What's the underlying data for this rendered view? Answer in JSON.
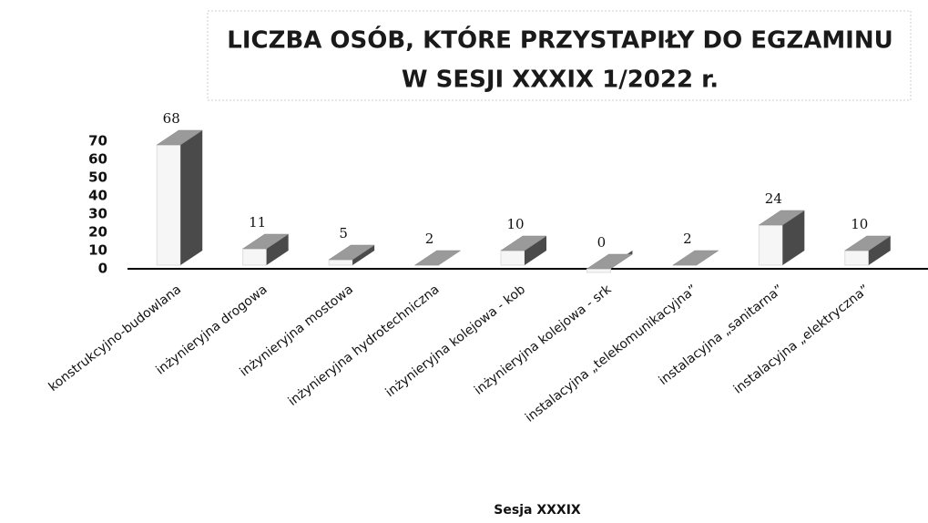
{
  "chart_data": {
    "type": "bar3d",
    "title": [
      "LICZBA OSÓB, KTÓRE PRZYSTAPIŁY DO EGZAMINU",
      "W SESJI XXXIX 1/2022 r."
    ],
    "x_label": "Sesja XXXIX",
    "categories": [
      "konstrukcyjno-budowlana",
      "inżynieryjna drogowa",
      "inżynieryjna mostowa",
      "inżynieryjna hydrotechniczna",
      "inżynieryjna kolejowa - kob",
      "inżynieryjna kolejowa - srk",
      "instalacyjna „telekomunikacyjna”",
      "instalacyjna „sanitarna”",
      "instalacyjna „elektryczna”"
    ],
    "values": [
      68,
      11,
      5,
      2,
      10,
      0,
      2,
      24,
      10
    ],
    "colors": {
      "front": "#f6f6f6",
      "side": "#4a4a4a",
      "top": "#9a9a9a"
    },
    "ylim": [
      0,
      70
    ],
    "yticks": [
      0,
      10,
      20,
      30,
      40,
      50,
      60,
      70
    ],
    "grid": false
  }
}
